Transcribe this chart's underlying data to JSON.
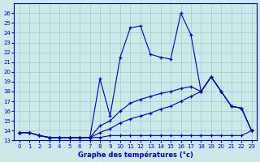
{
  "xlabel": "Graphe des températures (°c)",
  "x_ticks": [
    0,
    1,
    2,
    3,
    4,
    5,
    6,
    7,
    8,
    9,
    10,
    11,
    12,
    13,
    14,
    15,
    16,
    17,
    18,
    19,
    20,
    21,
    22,
    23
  ],
  "ylim": [
    13,
    27
  ],
  "xlim": [
    -0.5,
    23.5
  ],
  "yticks": [
    13,
    14,
    15,
    16,
    17,
    18,
    19,
    20,
    21,
    22,
    23,
    24,
    25,
    26
  ],
  "bg_color": "#cce8e8",
  "line_color": "#0000bb",
  "grid_color": "#99cccc",
  "line_flat_x": [
    0,
    1,
    2,
    3,
    4,
    5,
    6,
    7,
    8,
    9,
    10,
    11,
    12,
    13,
    14,
    15,
    16,
    17,
    18,
    19,
    20,
    21,
    22,
    23
  ],
  "line_flat_y": [
    13.8,
    13.8,
    13.5,
    13.3,
    13.3,
    13.3,
    13.3,
    13.3,
    13.3,
    13.5,
    13.5,
    13.5,
    13.5,
    13.5,
    13.5,
    13.5,
    13.5,
    13.5,
    13.5,
    13.5,
    13.5,
    13.5,
    13.5,
    14.0
  ],
  "line_slow_x": [
    0,
    1,
    2,
    3,
    4,
    5,
    6,
    7,
    8,
    9,
    10,
    11,
    12,
    13,
    14,
    15,
    16,
    17,
    18,
    19,
    20,
    21,
    22,
    23
  ],
  "line_slow_y": [
    13.8,
    13.8,
    13.5,
    13.3,
    13.3,
    13.3,
    13.3,
    13.3,
    13.8,
    14.2,
    14.8,
    15.2,
    15.5,
    15.8,
    16.2,
    16.5,
    17.0,
    17.5,
    18.0,
    19.5,
    18.0,
    16.5,
    16.3,
    14.0
  ],
  "line_mid_x": [
    0,
    1,
    2,
    3,
    4,
    5,
    6,
    7,
    8,
    9,
    10,
    11,
    12,
    13,
    14,
    15,
    16,
    17,
    18,
    19,
    20,
    21,
    22,
    23
  ],
  "line_mid_y": [
    13.8,
    13.8,
    13.5,
    13.3,
    13.3,
    13.3,
    13.3,
    13.3,
    14.5,
    15.0,
    16.0,
    16.8,
    17.2,
    17.5,
    17.8,
    18.0,
    18.3,
    18.5,
    18.0,
    19.5,
    18.0,
    16.5,
    16.3,
    14.0
  ],
  "line_high_x": [
    0,
    1,
    2,
    3,
    4,
    5,
    6,
    7,
    8,
    9,
    10,
    11,
    12,
    13,
    14,
    15,
    16,
    17,
    18,
    19,
    20,
    21,
    22,
    23
  ],
  "line_high_y": [
    13.8,
    13.8,
    13.5,
    13.3,
    13.3,
    13.3,
    13.3,
    13.3,
    19.3,
    15.5,
    21.5,
    24.5,
    24.7,
    21.8,
    21.5,
    21.3,
    26.0,
    23.8,
    18.0,
    19.5,
    18.0,
    16.5,
    16.3,
    14.0
  ]
}
